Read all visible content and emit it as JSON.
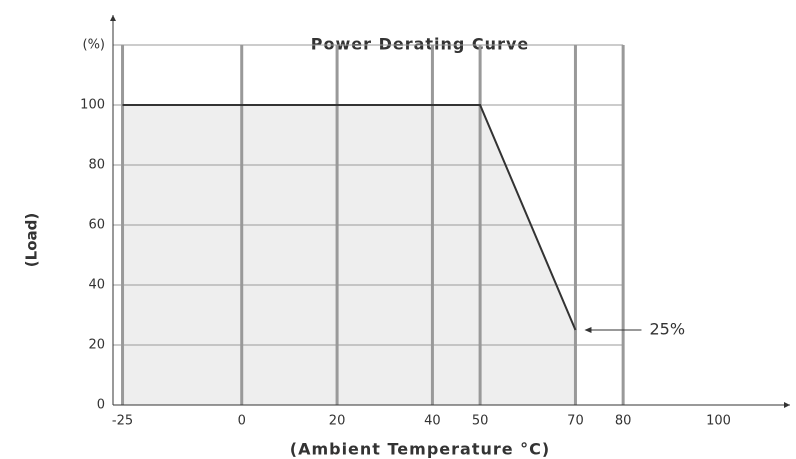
{
  "chart_data": {
    "type": "line",
    "title": "Power Derating Curve",
    "x_label": "(Ambient Temperature  °C)",
    "y_label": "(Load)",
    "series": [
      {
        "name": "Load",
        "color": "#333333",
        "x": [
          -25,
          50,
          70
        ],
        "values": [
          100,
          100,
          25
        ]
      }
    ],
    "annotations": [
      {
        "text": "25%",
        "x": 70,
        "y": 25
      }
    ],
    "xlim": [
      -27,
      115
    ],
    "xticks": [
      -25,
      0,
      20,
      40,
      50,
      70,
      80,
      100
    ],
    "ylim": [
      0,
      130
    ],
    "yticks": [
      0,
      20,
      40,
      60,
      80,
      100,
      {
        "value": 120,
        "label": "(%)"
      }
    ],
    "grid": true,
    "fill": "#eeeeee"
  }
}
